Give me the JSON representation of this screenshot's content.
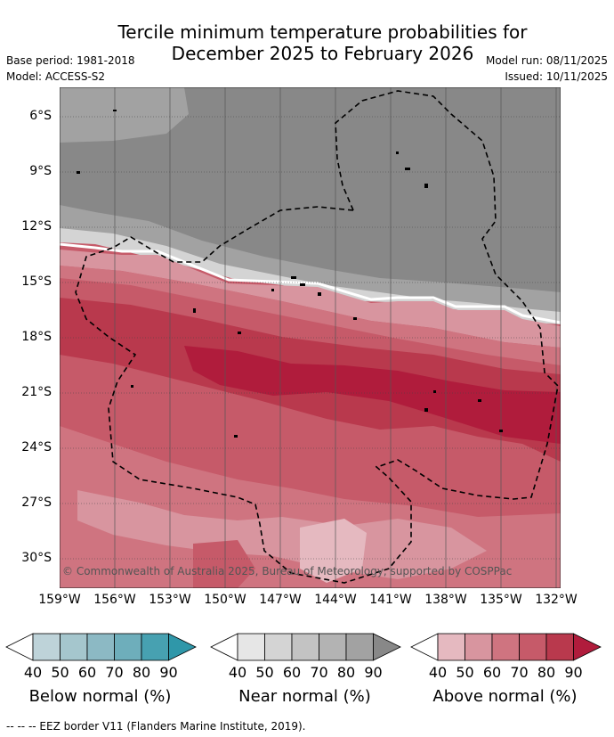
{
  "title_line1": "Tercile minimum temperature probabilities for",
  "title_line2": "December 2025 to February 2026",
  "meta": {
    "base_period": "Base period: 1981-2018",
    "model": "Model: ACCESS-S2",
    "model_run": "Model run: 08/11/2025",
    "issued": "Issued: 10/11/2025"
  },
  "axes": {
    "lat_labels": [
      "6°S",
      "9°S",
      "12°S",
      "15°S",
      "18°S",
      "21°S",
      "24°S",
      "27°S",
      "30°S"
    ],
    "lon_labels": [
      "159°W",
      "156°W",
      "153°W",
      "150°W",
      "147°W",
      "144°W",
      "141°W",
      "138°W",
      "135°W",
      "132°W"
    ]
  },
  "copyright": "© Commonwealth of Australia 2025, Bureau of Meteorology, supported by COSPPac",
  "legend": [
    {
      "title": "Below normal (%)",
      "ticks": [
        "40",
        "50",
        "60",
        "70",
        "80",
        "90"
      ],
      "colors": [
        "#ffffff",
        "#bed3d9",
        "#a5c6cd",
        "#8cb9c4",
        "#6eaebb",
        "#47a1b1",
        "#2f97a9"
      ]
    },
    {
      "title": "Near normal (%)",
      "ticks": [
        "40",
        "50",
        "60",
        "70",
        "80",
        "90"
      ],
      "colors": [
        "#ffffff",
        "#e6e6e6",
        "#d4d4d4",
        "#c3c3c3",
        "#b3b3b3",
        "#a2a2a2",
        "#888888"
      ]
    },
    {
      "title": "Above normal (%)",
      "ticks": [
        "40",
        "50",
        "60",
        "70",
        "80",
        "90"
      ],
      "colors": [
        "#ffffff",
        "#e5b9c0",
        "#d8959f",
        "#cf7480",
        "#c65a69",
        "#b9394d",
        "#b01c3c"
      ]
    }
  ],
  "footer": "--  --  -- EEZ border V11 (Flanders Marine Institute, 2019)."
}
